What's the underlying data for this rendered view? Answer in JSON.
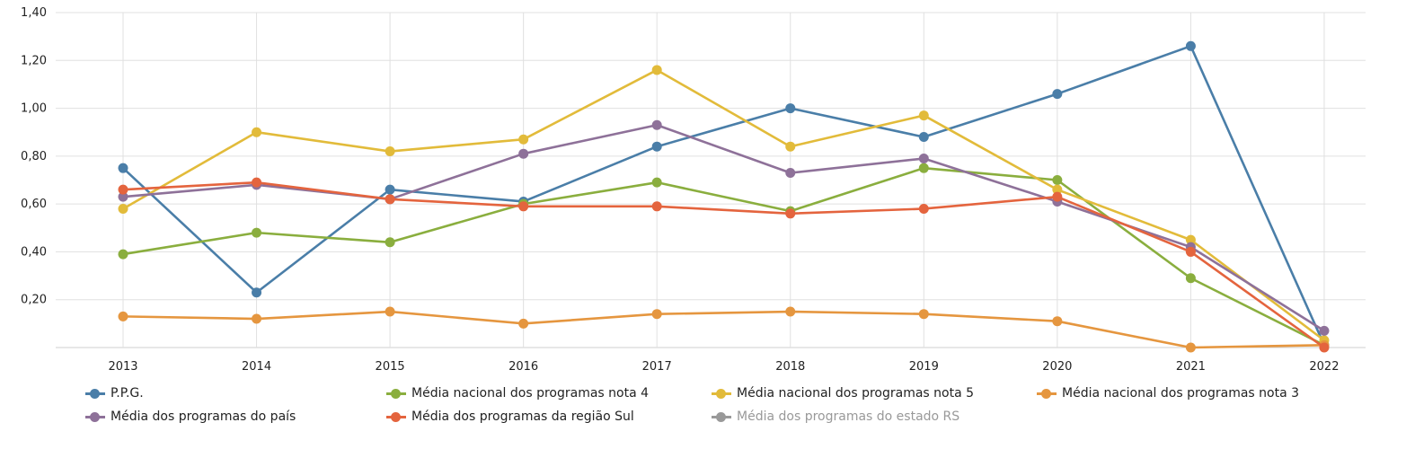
{
  "chart_data": {
    "type": "line",
    "title": "",
    "xlabel": "",
    "ylabel": "",
    "ylim": [
      0,
      1.4
    ],
    "yticks": [
      "0,20",
      "0,40",
      "0,60",
      "0,80",
      "1,00",
      "1,20",
      "1,40"
    ],
    "ytick_values": [
      0.2,
      0.4,
      0.6,
      0.8,
      1.0,
      1.2,
      1.4
    ],
    "categories": [
      "2013",
      "2014",
      "2015",
      "2016",
      "2017",
      "2018",
      "2019",
      "2020",
      "2021",
      "2022"
    ],
    "grid": true,
    "legend_position": "bottom",
    "series": [
      {
        "name": "P.P.G.",
        "color": "#4a7ea8",
        "visible": true,
        "values": [
          0.75,
          0.23,
          0.66,
          0.61,
          0.84,
          1.0,
          0.88,
          1.06,
          1.26,
          0.01
        ]
      },
      {
        "name": "Média nacional dos programas nota 4",
        "color": "#8aae3e",
        "visible": true,
        "values": [
          0.39,
          0.48,
          0.44,
          0.6,
          0.69,
          0.57,
          0.75,
          0.7,
          0.29,
          0.01
        ]
      },
      {
        "name": "Média nacional dos programas nota 5",
        "color": "#e2bb3a",
        "visible": true,
        "values": [
          0.58,
          0.9,
          0.82,
          0.87,
          1.16,
          0.84,
          0.97,
          0.66,
          0.45,
          0.03
        ]
      },
      {
        "name": "Média nacional dos programas nota 3",
        "color": "#e5963f",
        "visible": true,
        "values": [
          0.13,
          0.12,
          0.15,
          0.1,
          0.14,
          0.15,
          0.14,
          0.11,
          0.0,
          0.01
        ]
      },
      {
        "name": "Média dos programas do país",
        "color": "#8e7199",
        "visible": true,
        "values": [
          0.63,
          0.68,
          0.62,
          0.81,
          0.93,
          0.73,
          0.79,
          0.61,
          0.42,
          0.07
        ]
      },
      {
        "name": "Média dos programas da região Sul",
        "color": "#e4643e",
        "visible": true,
        "values": [
          0.66,
          0.69,
          0.62,
          0.59,
          0.59,
          0.56,
          0.58,
          0.63,
          0.4,
          0.0
        ]
      },
      {
        "name": "Média dos programas do estado RS",
        "color": "#999999",
        "visible": false,
        "values": []
      }
    ]
  }
}
